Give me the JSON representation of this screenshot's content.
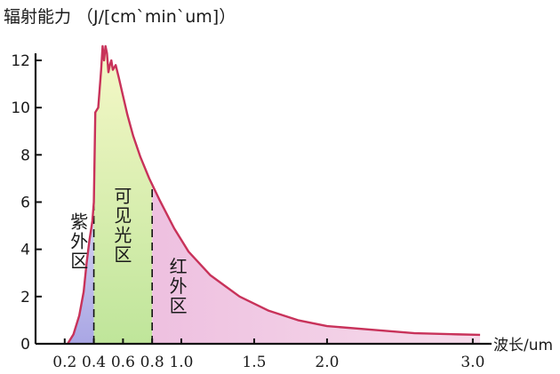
{
  "chart_data": {
    "type": "area",
    "title": "辐射能力 （J/[cm`min`um]）",
    "xlabel": "波长/um",
    "xlim": [
      0.0,
      3.08
    ],
    "ylim": [
      0,
      12.6
    ],
    "x_ticks": [
      {
        "value": 0.2,
        "label": "0.2"
      },
      {
        "value": 0.4,
        "label": "0.4"
      },
      {
        "value": 0.6,
        "label": "0.6"
      },
      {
        "value": 0.8,
        "label": "0.8"
      },
      {
        "value": 1.0,
        "label": "1.0"
      },
      {
        "value": 1.5,
        "label": "1.5"
      },
      {
        "value": 2.0,
        "label": "2.0"
      },
      {
        "value": 3.0,
        "label": "3.0"
      }
    ],
    "y_ticks": [
      0,
      2,
      4,
      6,
      8,
      10,
      12
    ],
    "series": [
      {
        "x": [
          0.22,
          0.26,
          0.3,
          0.33,
          0.35,
          0.37,
          0.39,
          0.4,
          0.41,
          0.43,
          0.45,
          0.46,
          0.47,
          0.48,
          0.49,
          0.5,
          0.51,
          0.52,
          0.53,
          0.55,
          0.57,
          0.6,
          0.63,
          0.67,
          0.72,
          0.78,
          0.85,
          0.95,
          1.05,
          1.2,
          1.4,
          1.6,
          1.8,
          2.0,
          2.3,
          2.6,
          2.9,
          3.05
        ],
        "values": [
          0,
          0.4,
          1.2,
          2.2,
          3.4,
          4.4,
          5.2,
          6.0,
          9.8,
          10.0,
          11.6,
          12.6,
          12.0,
          12.6,
          12.3,
          11.5,
          11.8,
          12.0,
          11.6,
          11.8,
          11.3,
          10.5,
          9.7,
          8.8,
          7.9,
          7.0,
          6.1,
          4.9,
          3.9,
          2.9,
          2.0,
          1.4,
          1.0,
          0.75,
          0.6,
          0.45,
          0.4,
          0.38
        ]
      }
    ],
    "dividers": [
      0.4,
      0.8
    ],
    "regions": [
      {
        "label": "紫外区",
        "x_from": 0.2,
        "x_to": 0.4,
        "color": "#b9b6ea"
      },
      {
        "label": "可见光区",
        "x_from": 0.4,
        "x_to": 0.8,
        "color": "#cbeaa0"
      },
      {
        "label": "红外区",
        "x_from": 0.8,
        "x_to": 3.05,
        "color": "#f0c0de"
      }
    ],
    "colors": {
      "curve": "#c8325a",
      "axis": "#111111",
      "divider": "#111111"
    }
  }
}
